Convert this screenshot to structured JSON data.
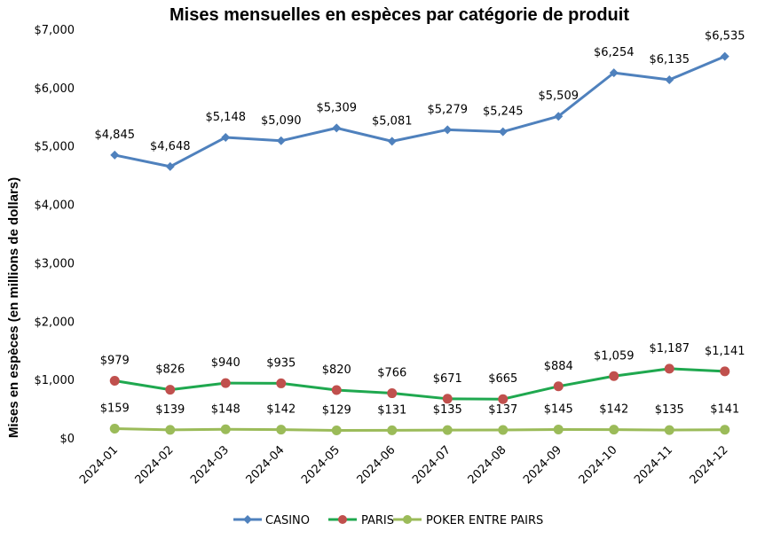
{
  "chart_data": {
    "type": "line",
    "title": "Mises mensuelles en espèces par catégorie de produit",
    "xlabel": "",
    "ylabel": "Mises en espèces (en millions de dollars)",
    "ylim": [
      0,
      7000
    ],
    "yticks": [
      0,
      1000,
      2000,
      3000,
      4000,
      5000,
      6000,
      7000
    ],
    "ytick_labels": [
      "$0",
      "$1,000",
      "$2,000",
      "$3,000",
      "$4,000",
      "$5,000",
      "$6,000",
      "$7,000"
    ],
    "categories": [
      "2024-01",
      "2024-02",
      "2024-03",
      "2024-04",
      "2024-05",
      "2024-06",
      "2024-07",
      "2024-08",
      "2024-09",
      "2024-10",
      "2024-11",
      "2024-12"
    ],
    "grid": false,
    "legend_position": "bottom",
    "series": [
      {
        "name": "CASINO",
        "color": "#4f81bd",
        "marker": "diamond",
        "values": [
          4845,
          4648,
          5148,
          5090,
          5309,
          5081,
          5279,
          5245,
          5509,
          6254,
          6135,
          6535
        ],
        "labels": [
          "$4,845",
          "$4,648",
          "$5,148",
          "$5,090",
          "$5,309",
          "$5,081",
          "$5,279",
          "$5,245",
          "$5,509",
          "$6,254",
          "$6,135",
          "$6,535"
        ]
      },
      {
        "name": "PARIS",
        "color": "#1fa84f",
        "marker_color": "#c0504d",
        "marker": "circle",
        "values": [
          979,
          826,
          940,
          935,
          820,
          766,
          671,
          665,
          884,
          1059,
          1187,
          1141
        ],
        "labels": [
          "$979",
          "$826",
          "$940",
          "$935",
          "$820",
          "$766",
          "$671",
          "$665",
          "$884",
          "$1,059",
          "$1,187",
          "$1,141"
        ]
      },
      {
        "name": "POKER ENTRE PAIRS",
        "color": "#9bbb59",
        "marker": "circle",
        "values": [
          159,
          139,
          148,
          142,
          129,
          131,
          135,
          137,
          145,
          142,
          135,
          141
        ],
        "labels": [
          "$159",
          "$139",
          "$148",
          "$142",
          "$129",
          "$131",
          "$135",
          "$137",
          "$145",
          "$142",
          "$135",
          "$141"
        ]
      }
    ]
  }
}
